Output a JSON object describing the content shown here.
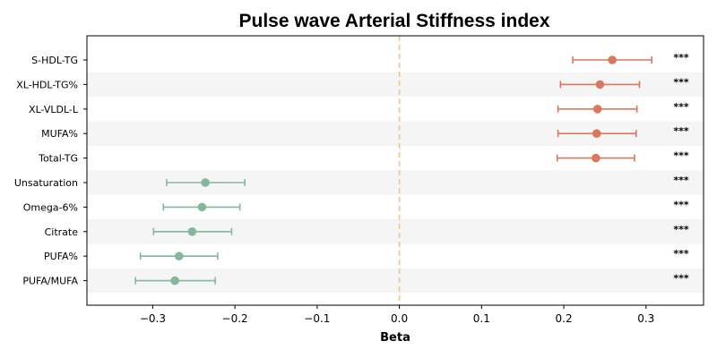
{
  "chart_data": {
    "type": "scatter",
    "title": "Pulse wave Arterial Stiffness index",
    "xlabel": "Beta",
    "ylabel": "",
    "xlim": [
      -0.38,
      0.37
    ],
    "xticks": [
      -0.3,
      -0.2,
      -0.1,
      0.0,
      0.1,
      0.2,
      0.3
    ],
    "xtick_labels": [
      "−0.3",
      "−0.2",
      "−0.1",
      "0.0",
      "0.1",
      "0.2",
      "0.3"
    ],
    "reference_line": 0,
    "positive_color": "#d9785e",
    "negative_color": "#84b89a",
    "reference_color": "#f0c48a",
    "band_color": "#f5f5f5",
    "rows": [
      {
        "label": "S-HDL-TG",
        "beta": 0.259,
        "ci_low": 0.211,
        "ci_high": 0.307,
        "significance": "***"
      },
      {
        "label": "XL-HDL-TG%",
        "beta": 0.244,
        "ci_low": 0.196,
        "ci_high": 0.292,
        "significance": "***"
      },
      {
        "label": "XL-VLDL-L",
        "beta": 0.241,
        "ci_low": 0.193,
        "ci_high": 0.289,
        "significance": "***"
      },
      {
        "label": "MUFA%",
        "beta": 0.24,
        "ci_low": 0.193,
        "ci_high": 0.288,
        "significance": "***"
      },
      {
        "label": "Total-TG",
        "beta": 0.239,
        "ci_low": 0.192,
        "ci_high": 0.286,
        "significance": "***"
      },
      {
        "label": "Unsaturation",
        "beta": -0.236,
        "ci_low": -0.283,
        "ci_high": -0.188,
        "significance": "***"
      },
      {
        "label": "Omega-6%",
        "beta": -0.24,
        "ci_low": -0.287,
        "ci_high": -0.194,
        "significance": "***"
      },
      {
        "label": "Citrate",
        "beta": -0.252,
        "ci_low": -0.299,
        "ci_high": -0.204,
        "significance": "***"
      },
      {
        "label": "PUFA%",
        "beta": -0.268,
        "ci_low": -0.315,
        "ci_high": -0.221,
        "significance": "***"
      },
      {
        "label": "PUFA/MUFA",
        "beta": -0.273,
        "ci_low": -0.321,
        "ci_high": -0.224,
        "significance": "***"
      }
    ]
  }
}
